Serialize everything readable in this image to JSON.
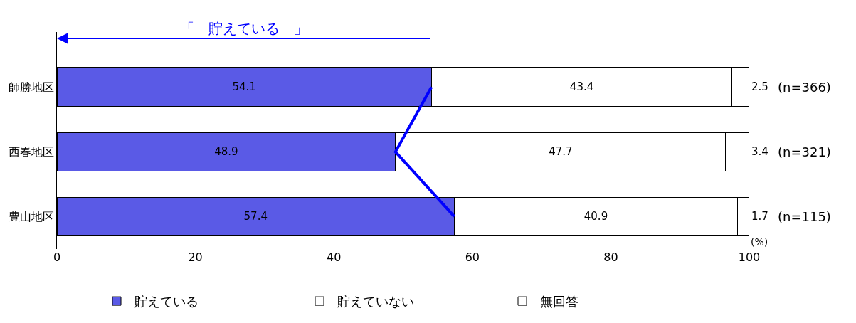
{
  "chart_data": {
    "type": "bar",
    "orientation": "horizontal",
    "stacked": true,
    "categories": [
      "師勝地区",
      "西春地区",
      "豊山地区"
    ],
    "series": [
      {
        "name": "貯えている",
        "color": "#5a5ae6",
        "values": [
          54.1,
          48.9,
          57.4
        ]
      },
      {
        "name": "貯えていない",
        "color": "#ffffff",
        "values": [
          43.4,
          47.7,
          40.9
        ]
      },
      {
        "name": "無回答",
        "color": "#ffffff",
        "values": [
          2.5,
          3.4,
          1.7
        ]
      },
      {
        "type": "line",
        "color": "#0000ff",
        "values": [
          54.1,
          48.9,
          57.4
        ],
        "value_labels": [
          null,
          null,
          null
        ]
      }
    ],
    "data_labels": true,
    "xlim": [
      0,
      100
    ],
    "xticks": [
      0,
      20,
      40,
      60,
      80,
      100
    ],
    "legend": "bottom",
    "annotations": [
      "(n=366)",
      "(n=321)",
      "(n=115)",
      "(%)",
      "「　貯えている　」"
    ]
  }
}
